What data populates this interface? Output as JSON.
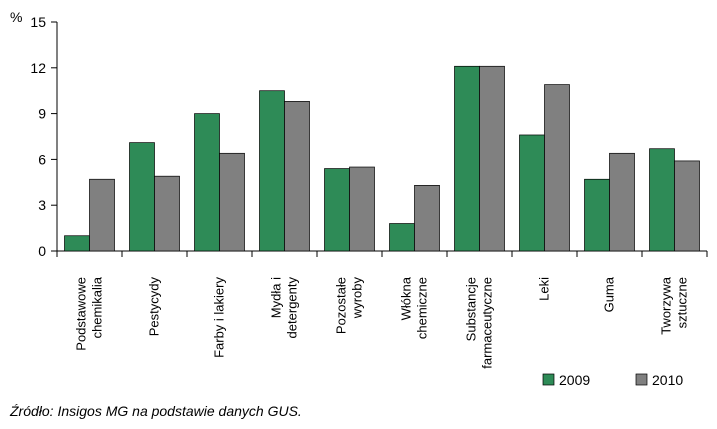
{
  "chart_data": {
    "type": "bar",
    "unit_label": "%",
    "categories": [
      [
        "Podstawowe",
        "chemikalia"
      ],
      [
        "Pestycydy"
      ],
      [
        "Farby i lakiery"
      ],
      [
        "Mydła i",
        "detergenty"
      ],
      [
        "Pozostałe",
        "wyroby"
      ],
      [
        "Włókna",
        "chemiczne"
      ],
      [
        "Substancje",
        "farmaceutyczne"
      ],
      [
        "Leki"
      ],
      [
        "Guma"
      ],
      [
        "Tworzywa",
        "sztuczne"
      ]
    ],
    "series": [
      {
        "name": "2009",
        "color": "#2e8b57",
        "values": [
          1.0,
          7.1,
          9.0,
          10.5,
          5.4,
          1.8,
          12.1,
          7.6,
          4.7,
          6.7
        ]
      },
      {
        "name": "2010",
        "color": "#808080",
        "values": [
          4.7,
          4.9,
          6.4,
          9.8,
          5.5,
          4.3,
          12.1,
          10.9,
          6.4,
          5.9
        ]
      }
    ],
    "yticks": [
      "0",
      "3",
      "6",
      "9",
      "12",
      "15"
    ],
    "ylim": [
      0,
      15
    ],
    "grid": false,
    "legend": "bottom-right"
  },
  "source_text": "Źródło: Insigos MG na podstawie danych GUS."
}
